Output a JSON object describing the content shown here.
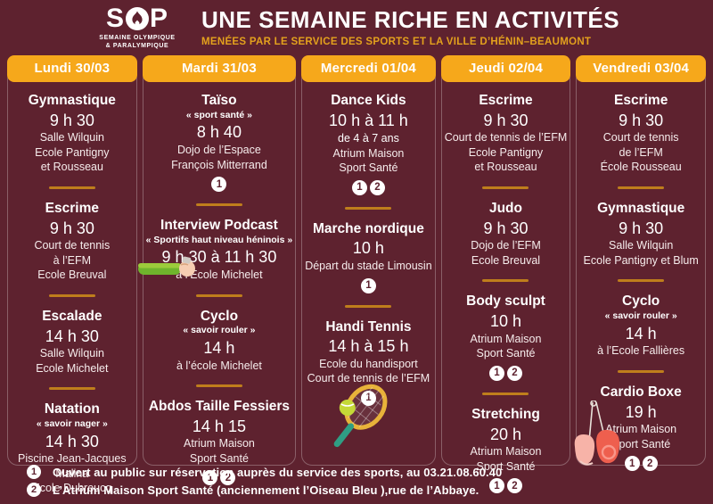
{
  "header": {
    "logo": {
      "acronym_left": "S",
      "acronym_right": "P",
      "flame_icon": "flame-icon",
      "caption_line1": "SEMAINE OLYMPIQUE",
      "caption_line2": "& PARALYMPIQUE"
    },
    "title": "UNE SEMAINE RICHE EN ACTIVITÉS",
    "subtitle": "MENÉES PAR LE SERVICE DES SPORTS ET LA VILLE D’HÉNIN–BEAUMONT"
  },
  "colors": {
    "background": "#5e222f",
    "accent_gold": "#f6a81b",
    "subtitle_gold": "#e3a11d",
    "divider_gold": "#bf7e1c",
    "text_white": "#ffffff"
  },
  "days": [
    {
      "label": "Lundi 30/03",
      "activities": [
        {
          "name": "Gymnastique",
          "time": "9 h 30",
          "location_lines": [
            "Salle Wilquin",
            "Ecole Pantigny",
            "et Rousseau"
          ]
        },
        {
          "name": "Escrime",
          "time": "9 h 30",
          "location_lines": [
            "Court de tennis",
            "à l’EFM",
            "Ecole Breuval"
          ]
        },
        {
          "name": "Escalade",
          "time": "14 h 30",
          "location_lines": [
            "Salle Wilquin",
            "Ecole Michelet"
          ]
        },
        {
          "name": "Natation",
          "subtitle": "« savoir nager »",
          "time": "14 h 30",
          "location_lines": [
            "Piscine Jean-Jacques",
            "Malina",
            "Ecole Dubreucq"
          ]
        }
      ]
    },
    {
      "label": "Mardi 31/03",
      "illustration": "arm-icon",
      "activities": [
        {
          "name": "Taïso",
          "subtitle": "« sport santé »",
          "time": "8 h 40",
          "location_lines": [
            "Dojo de l’Espace",
            "François Mitterrand"
          ],
          "badges": [
            "1"
          ]
        },
        {
          "name": "Interview Podcast",
          "subtitle": "« Sportifs haut niveau héninois »",
          "time": "9 h 30 à 11 h 30",
          "location_lines": [
            "à l’Ecole Michelet"
          ]
        },
        {
          "name": "Cyclo",
          "subtitle": "« savoir rouler »",
          "time": "14 h",
          "location_lines": [
            "à l’école Michelet"
          ]
        },
        {
          "name": "Abdos Taille Fessiers",
          "time": "14 h 15",
          "location_lines": [
            "Atrium Maison",
            "Sport Santé"
          ],
          "badges": [
            "1",
            "2"
          ]
        }
      ]
    },
    {
      "label": "Mercredi 01/04",
      "illustration": "tennis-racket-icon",
      "activities": [
        {
          "name": "Dance Kids",
          "time": "10 h à 11 h",
          "age_note": "de 4 à 7 ans",
          "location_lines": [
            "Atrium Maison",
            "Sport Santé"
          ],
          "badges": [
            "1",
            "2"
          ]
        },
        {
          "name": "Marche nordique",
          "time": "10 h",
          "location_lines": [
            "Départ du stade Limousin"
          ],
          "badges": [
            "1"
          ]
        },
        {
          "name": "Handi Tennis",
          "time": "14 h à 15 h",
          "location_lines": [
            "Ecole du handisport",
            "Court de tennis de l’EFM"
          ],
          "badges": [
            "1"
          ]
        }
      ]
    },
    {
      "label": "Jeudi 02/04",
      "activities": [
        {
          "name": "Escrime",
          "time": "9 h 30",
          "location_lines": [
            "Court de tennis de l’EFM",
            "Ecole Pantigny",
            "et Rousseau"
          ]
        },
        {
          "name": "Judo",
          "time": "9 h 30",
          "location_lines": [
            "Dojo de l’EFM",
            "Ecole Breuval"
          ]
        },
        {
          "name": "Body sculpt",
          "time": "10 h",
          "location_lines": [
            "Atrium Maison",
            "Sport Santé"
          ],
          "badges": [
            "1",
            "2"
          ]
        },
        {
          "name": "Stretching",
          "time": "20 h",
          "location_lines": [
            "Atrium Maison",
            "Sport Santé"
          ],
          "badges": [
            "1",
            "2"
          ]
        }
      ]
    },
    {
      "label": "Vendredi 03/04",
      "illustration": "boxing-gloves-icon",
      "activities": [
        {
          "name": "Escrime",
          "time": "9 h 30",
          "location_lines": [
            "Court de tennis",
            "de l’EFM",
            "École Rousseau"
          ]
        },
        {
          "name": "Gymnastique",
          "time": "9 h 30",
          "location_lines": [
            "Salle Wilquin",
            "Ecole Pantigny et Blum"
          ]
        },
        {
          "name": "Cyclo",
          "subtitle": "« savoir rouler »",
          "time": "14 h",
          "location_lines": [
            "à l’Ecole Fallières"
          ]
        },
        {
          "name": "Cardio Boxe",
          "time": "19 h",
          "location_lines": [
            "Atrium Maison",
            "Sport Santé"
          ],
          "badges": [
            "1",
            "2"
          ]
        }
      ]
    }
  ],
  "footnotes": [
    {
      "num": "1",
      "text": "Ouvert au public sur réservation auprès du service des sports, au 03.21.08.60.40"
    },
    {
      "num": "2",
      "text": "L’Atrium Maison Sport Santé (anciennement l’Oiseau Bleu ),rue de l’Abbaye."
    }
  ]
}
